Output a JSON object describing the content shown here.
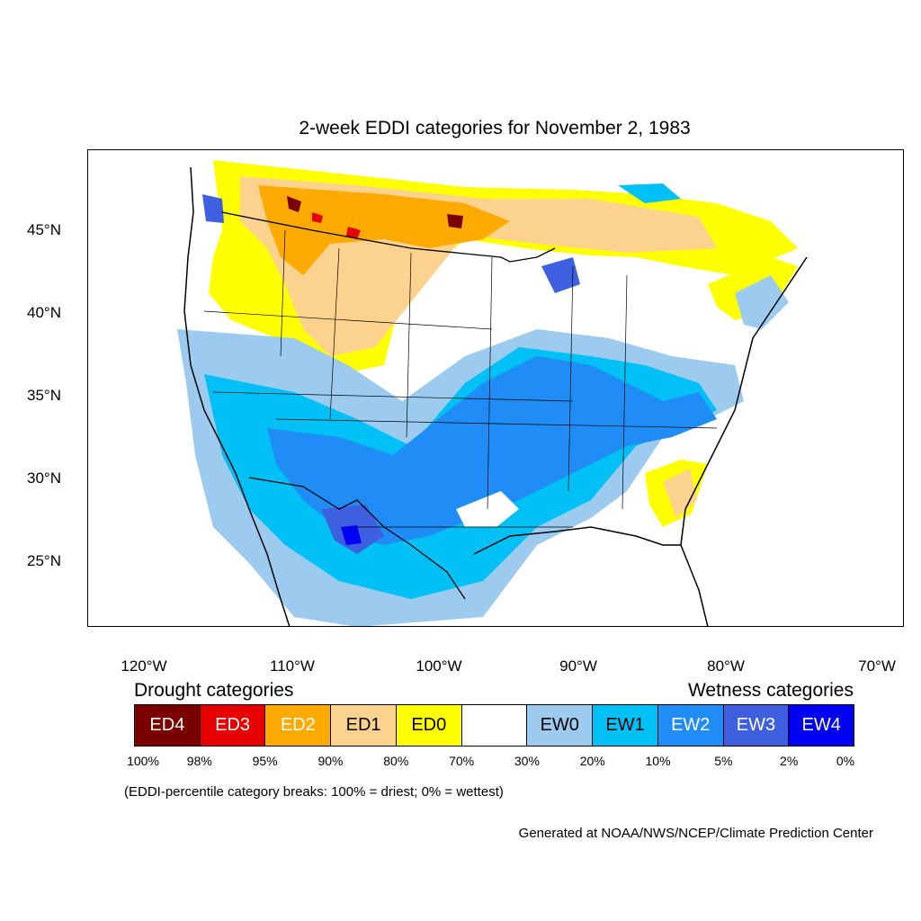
{
  "title": "2-week EDDI categories for November 2, 1983",
  "lat_ticks": [
    "45°N",
    "40°N",
    "35°N",
    "30°N",
    "25°N"
  ],
  "lon_ticks": [
    "120°W",
    "110°W",
    "100°W",
    "90°W",
    "80°W",
    "70°W"
  ],
  "legend": {
    "drought_label": "Drought categories",
    "wetness_label": "Wetness categories",
    "categories": [
      {
        "label": "ED4",
        "color": "#7a0000",
        "text_color": "#ffffff"
      },
      {
        "label": "ED3",
        "color": "#e60000",
        "text_color": "#ffffff"
      },
      {
        "label": "ED2",
        "color": "#ffaa00",
        "text_color": "#ffffff"
      },
      {
        "label": "ED1",
        "color": "#fcd38e",
        "text_color": "#000000"
      },
      {
        "label": "ED0",
        "color": "#ffff00",
        "text_color": "#000000"
      },
      {
        "label": "",
        "color": "#ffffff",
        "text_color": "#000000"
      },
      {
        "label": "EW0",
        "color": "#9ccbef",
        "text_color": "#000000"
      },
      {
        "label": "EW1",
        "color": "#00c0f5",
        "text_color": "#000000"
      },
      {
        "label": "EW2",
        "color": "#1f8df5",
        "text_color": "#ffffff"
      },
      {
        "label": "EW3",
        "color": "#3e5fe0",
        "text_color": "#ffffff"
      },
      {
        "label": "EW4",
        "color": "#0000f5",
        "text_color": "#ffffff"
      }
    ],
    "percent_breaks": [
      "100%",
      "98%",
      "95%",
      "90%",
      "80%",
      "70%",
      "30%",
      "20%",
      "10%",
      "5%",
      "2%",
      "0%"
    ]
  },
  "breaks_note": "(EDDI-percentile category breaks: 100% = driest; 0% = wettest)",
  "credit": "Generated at NOAA/NWS/NCEP/Climate Prediction Center"
}
